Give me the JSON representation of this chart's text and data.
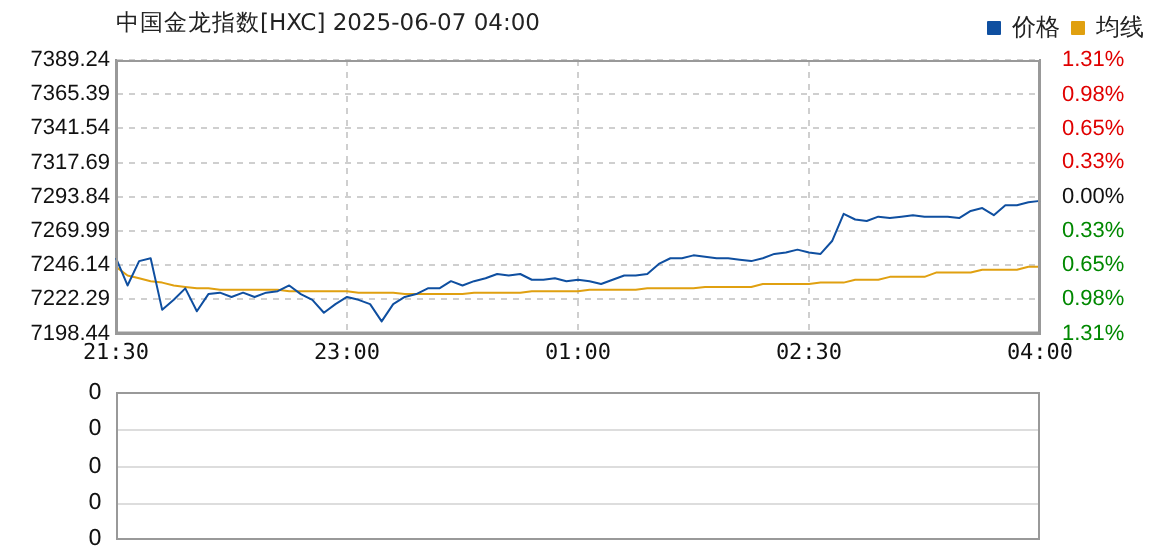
{
  "chart_data": [
    {
      "type": "line",
      "title": "中国金龙指数[HXC] 2025-06-07 04:00",
      "categories": [
        "21:30",
        null,
        null,
        null,
        null,
        null,
        null,
        null,
        null,
        null,
        null,
        null,
        null,
        null,
        null,
        null,
        null,
        null,
        null,
        null,
        "23:00",
        null,
        null,
        null,
        null,
        null,
        null,
        null,
        null,
        null,
        null,
        null,
        null,
        null,
        null,
        null,
        null,
        null,
        null,
        null,
        "01:00",
        null,
        null,
        null,
        null,
        null,
        null,
        null,
        null,
        null,
        null,
        null,
        null,
        null,
        null,
        null,
        null,
        null,
        null,
        null,
        "02:30",
        null,
        null,
        null,
        null,
        null,
        null,
        null,
        null,
        null,
        null,
        null,
        null,
        null,
        null,
        null,
        null,
        null,
        null,
        null,
        "04:00"
      ],
      "series": [
        {
          "name": "价格",
          "color": "#0f4fa0",
          "values": [
            7251,
            7232,
            7249,
            7251,
            7215,
            7222,
            7230,
            7214,
            7226,
            7227,
            7224,
            7227,
            7224,
            7227,
            7228,
            7232,
            7226,
            7222,
            7213,
            7219,
            7224,
            7222,
            7219,
            7207,
            7219,
            7224,
            7226,
            7230,
            7230,
            7235,
            7232,
            7235,
            7237,
            7240,
            7239,
            7240,
            7236,
            7236,
            7237,
            7235,
            7236,
            7235,
            7233,
            7236,
            7239,
            7239,
            7240,
            7247,
            7251,
            7251,
            7253,
            7252,
            7251,
            7251,
            7250,
            7249,
            7251,
            7254,
            7255,
            7257,
            7255,
            7254,
            7263,
            7282,
            7278,
            7277,
            7280,
            7279,
            7280,
            7281,
            7280,
            7280,
            7280,
            7279,
            7284,
            7286,
            7281,
            7288,
            7288,
            7290,
            7291
          ]
        },
        {
          "name": "均线",
          "color": "#e0a010",
          "values": [
            7245,
            7239,
            7237,
            7235,
            7234,
            7232,
            7231,
            7230,
            7230,
            7229,
            7229,
            7229,
            7229,
            7229,
            7229,
            7228,
            7228,
            7228,
            7228,
            7228,
            7228,
            7227,
            7227,
            7227,
            7227,
            7226,
            7226,
            7226,
            7226,
            7226,
            7226,
            7227,
            7227,
            7227,
            7227,
            7227,
            7228,
            7228,
            7228,
            7228,
            7228,
            7229,
            7229,
            7229,
            7229,
            7229,
            7230,
            7230,
            7230,
            7230,
            7230,
            7231,
            7231,
            7231,
            7231,
            7231,
            7233,
            7233,
            7233,
            7233,
            7233,
            7234,
            7234,
            7234,
            7236,
            7236,
            7236,
            7238,
            7238,
            7238,
            7238,
            7241,
            7241,
            7241,
            7241,
            7243,
            7243,
            7243,
            7243,
            7245,
            7245
          ]
        }
      ],
      "ylim": [
        7198.44,
        7389.24
      ],
      "yticks": [
        7198.44,
        7222.29,
        7246.14,
        7269.99,
        7293.84,
        7317.69,
        7341.54,
        7365.39,
        7389.24
      ],
      "y2lim": [
        -1.31,
        1.31
      ],
      "y2ticks": [
        {
          "value": -1.31,
          "label": "1.31%"
        },
        {
          "value": -0.98,
          "label": "0.98%"
        },
        {
          "value": -0.65,
          "label": "0.65%"
        },
        {
          "value": -0.33,
          "label": "0.33%"
        },
        {
          "value": 0,
          "label": "0.00%"
        },
        {
          "value": 0.33,
          "label": "0.33%"
        },
        {
          "value": 0.65,
          "label": "0.65%"
        },
        {
          "value": 0.98,
          "label": "0.98%"
        },
        {
          "value": 1.31,
          "label": "1.31%"
        }
      ],
      "grid": true,
      "legend": "top right"
    },
    {
      "type": "other",
      "annotations": [
        "0",
        "0",
        "0",
        "0",
        "0"
      ]
    }
  ]
}
